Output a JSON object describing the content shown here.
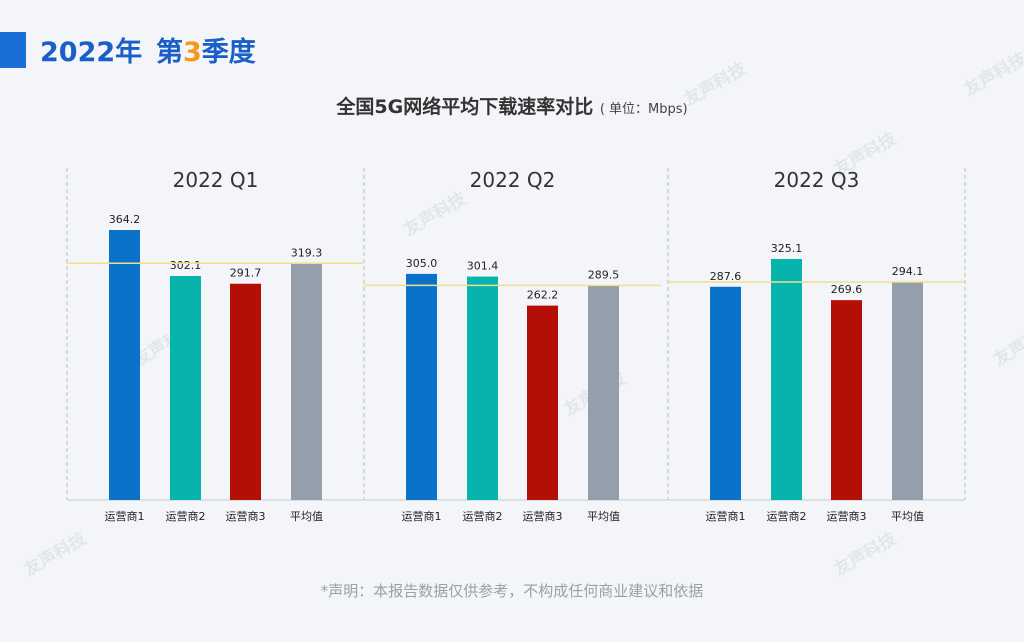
{
  "header": {
    "year_title": "2022年",
    "quarter_prefix": "第",
    "quarter_number": "3",
    "quarter_suffix": "季度"
  },
  "chart_title": "全国5G网络平均下载速率对比",
  "chart_unit": "( 单位：Mbps)",
  "disclaimer": "*声明：本报告数据仅供参考，不构成任何商业建议和依据",
  "watermark_text": "友声科技",
  "colors": {
    "运营商1": "#0a72c9",
    "运营商2": "#06b3ad",
    "运营商3": "#b30f06",
    "平均值": "#959eab",
    "avg_line": "#f0e08a"
  },
  "chart_data": [
    {
      "type": "bar",
      "title": "2022 Q1",
      "categories": [
        "运营商1",
        "运营商2",
        "运营商3",
        "平均值"
      ],
      "values": [
        364.2,
        302.1,
        291.7,
        319.3
      ],
      "value_labels": [
        "364.2",
        "302.1",
        "291.7",
        "319.3"
      ],
      "average_line": 319.3
    },
    {
      "type": "bar",
      "title": "2022 Q2",
      "categories": [
        "运营商1",
        "运营商2",
        "运营商3",
        "平均值"
      ],
      "values": [
        305.0,
        301.4,
        262.2,
        289.5
      ],
      "value_labels": [
        "305.0",
        "301.4",
        "262.2",
        "289.5"
      ],
      "average_line": 289.5
    },
    {
      "type": "bar",
      "title": "2022 Q3",
      "categories": [
        "运营商1",
        "运营商2",
        "运营商3",
        "平均值"
      ],
      "values": [
        287.6,
        325.1,
        269.6,
        294.1
      ],
      "value_labels": [
        "287.6",
        "325.1",
        "269.6",
        "294.1"
      ],
      "average_line": 294.1
    }
  ]
}
